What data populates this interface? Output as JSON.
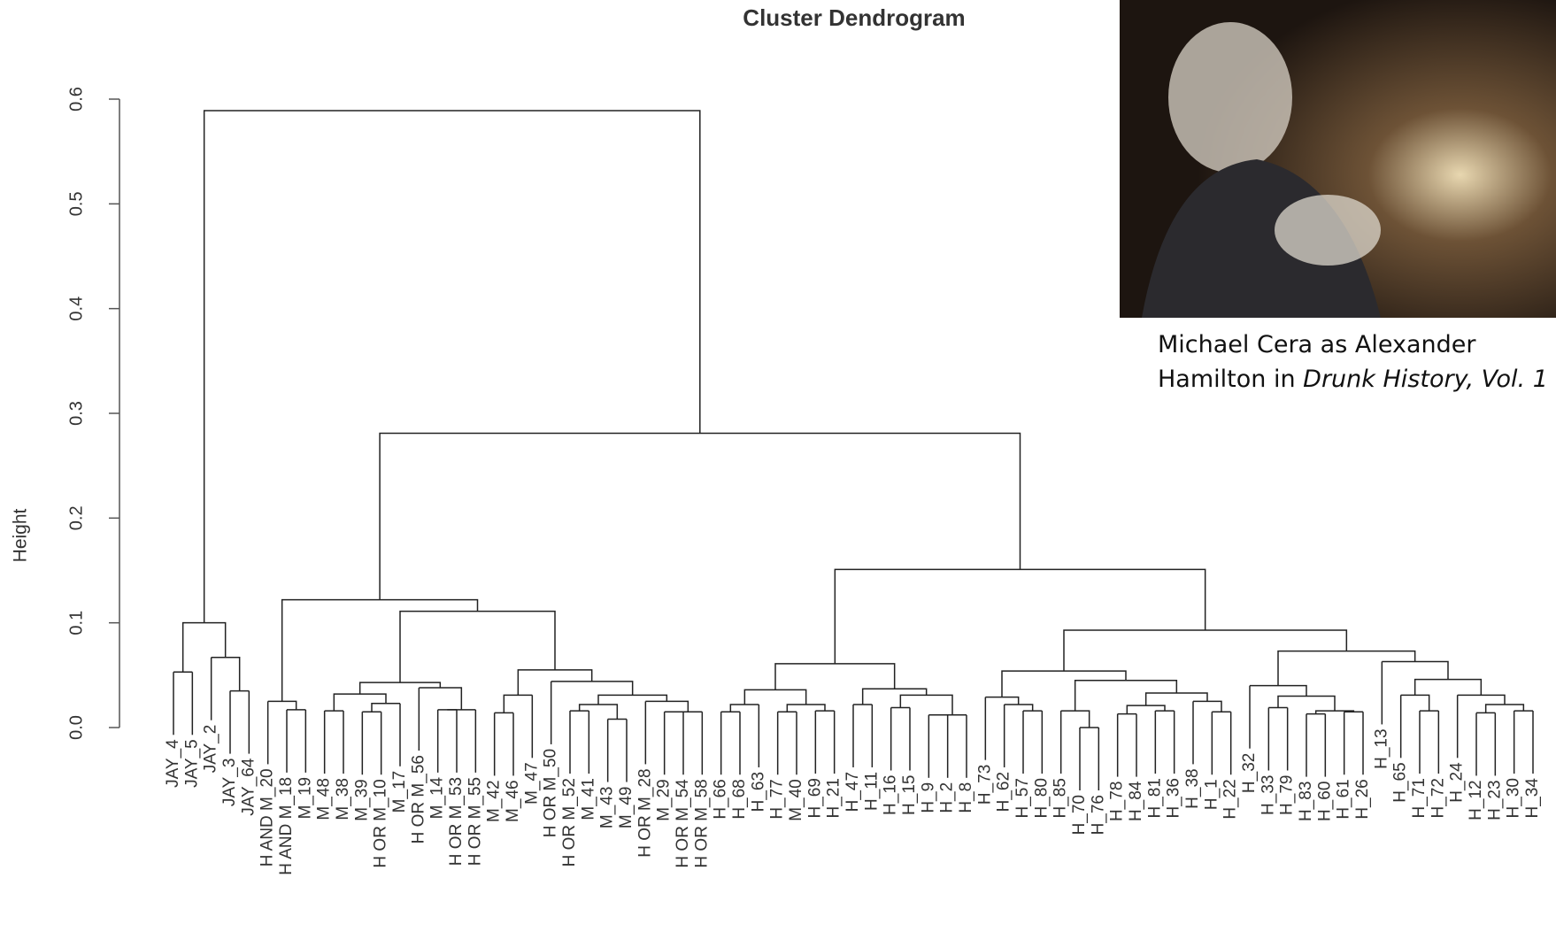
{
  "chart_data": {
    "type": "dendrogram",
    "title": "Cluster Dendrogram",
    "y_label": "Height",
    "ylim": [
      0,
      0.6
    ],
    "yticks": [
      {
        "value": 0,
        "label": "0.0"
      },
      0.1,
      0.2,
      0.3,
      0.4,
      0.5,
      0.6
    ],
    "color": "#222222",
    "tree": {
      "height": 0.589,
      "children": [
        {
          "height": 0.1,
          "children": [
            {
              "height": 0.053,
              "children": [
                "JAY_4",
                "JAY_5"
              ]
            },
            {
              "height": 0.067,
              "children": [
                "JAY_2",
                {
                  "height": 0.035,
                  "children": [
                    "JAY_3",
                    "JAY_64"
                  ]
                }
              ]
            }
          ]
        },
        {
          "height": 0.281,
          "children": [
            {
              "height": 0.122,
              "children": [
                {
                  "height": 0.025,
                  "children": [
                    "H AND M_20",
                    {
                      "height": 0.017,
                      "children": [
                        "H AND M_18",
                        "M_19"
                      ]
                    }
                  ]
                },
                {
                  "height": 0.111,
                  "children": [
                    {
                      "height": 0.043,
                      "children": [
                        {
                          "height": 0.032,
                          "children": [
                            {
                              "height": 0.016,
                              "children": [
                                "M_48",
                                "M_38"
                              ]
                            },
                            {
                              "height": 0.023,
                              "children": [
                                {
                                  "height": 0.015,
                                  "children": [
                                    "M_39",
                                    "H OR M_10"
                                  ]
                                },
                                "M_17"
                              ]
                            }
                          ]
                        },
                        {
                          "height": 0.038,
                          "children": [
                            "H OR M_56",
                            {
                              "height": 0.017,
                              "children": [
                                {
                                  "height": 0.017,
                                  "children": [
                                    "M_14",
                                    "H OR M_53"
                                  ]
                                },
                                "H OR M_55"
                              ]
                            }
                          ]
                        }
                      ]
                    },
                    {
                      "height": 0.055,
                      "children": [
                        {
                          "height": 0.031,
                          "children": [
                            {
                              "height": 0.014,
                              "children": [
                                "M_42",
                                "M_46"
                              ]
                            },
                            "M_47"
                          ]
                        },
                        {
                          "height": 0.044,
                          "children": [
                            "H OR M_50",
                            {
                              "height": 0.031,
                              "children": [
                                {
                                  "height": 0.022,
                                  "children": [
                                    {
                                      "height": 0.016,
                                      "children": [
                                        "H OR M_52",
                                        "M_41"
                                      ]
                                    },
                                    {
                                      "height": 0.008,
                                      "children": [
                                        "M_43",
                                        "M_49"
                                      ]
                                    }
                                  ]
                                },
                                {
                                  "height": 0.025,
                                  "children": [
                                    "H OR M_28",
                                    {
                                      "height": 0.015,
                                      "children": [
                                        {
                                          "height": 0.015,
                                          "children": [
                                            "M_29",
                                            "H OR M_54"
                                          ]
                                        },
                                        "H OR M_58"
                                      ]
                                    }
                                  ]
                                }
                              ]
                            }
                          ]
                        }
                      ]
                    }
                  ]
                }
              ]
            },
            {
              "height": 0.151,
              "children": [
                {
                  "height": 0.061,
                  "children": [
                    {
                      "height": 0.036,
                      "children": [
                        {
                          "height": 0.022,
                          "children": [
                            {
                              "height": 0.015,
                              "children": [
                                "H_66",
                                "H_68"
                              ]
                            },
                            "H_63"
                          ]
                        },
                        {
                          "height": 0.022,
                          "children": [
                            {
                              "height": 0.015,
                              "children": [
                                "H_77",
                                "M_40"
                              ]
                            },
                            {
                              "height": 0.016,
                              "children": [
                                "H_69",
                                "H_21"
                              ]
                            }
                          ]
                        }
                      ]
                    },
                    {
                      "height": 0.037,
                      "children": [
                        {
                          "height": 0.022,
                          "children": [
                            "H_47",
                            "H_11"
                          ]
                        },
                        {
                          "height": 0.031,
                          "children": [
                            {
                              "height": 0.019,
                              "children": [
                                "H_16",
                                "H_15"
                              ]
                            },
                            {
                              "height": 0.012,
                              "children": [
                                {
                                  "height": 0.012,
                                  "children": [
                                    "H_9",
                                    "H_2"
                                  ]
                                },
                                "H_8"
                              ]
                            }
                          ]
                        }
                      ]
                    }
                  ]
                },
                {
                  "height": 0.093,
                  "children": [
                    {
                      "height": 0.054,
                      "children": [
                        {
                          "height": 0.029,
                          "children": [
                            "H_73",
                            {
                              "height": 0.022,
                              "children": [
                                "H_62",
                                {
                                  "height": 0.016,
                                  "children": [
                                    "H_57",
                                    "H_80"
                                  ]
                                }
                              ]
                            }
                          ]
                        },
                        {
                          "height": 0.045,
                          "children": [
                            {
                              "height": 0.016,
                              "children": [
                                "H_85",
                                {
                                  "height": 0,
                                  "children": [
                                    "H_70",
                                    "H_76"
                                  ]
                                }
                              ]
                            },
                            {
                              "height": 0.033,
                              "children": [
                                {
                                  "height": 0.021,
                                  "children": [
                                    {
                                      "height": 0.013,
                                      "children": [
                                        "H_78",
                                        "H_84"
                                      ]
                                    },
                                    {
                                      "height": 0.016,
                                      "children": [
                                        "H_81",
                                        "H_36"
                                      ]
                                    }
                                  ]
                                },
                                {
                                  "height": 0.025,
                                  "children": [
                                    "H_38",
                                    {
                                      "height": 0.015,
                                      "children": [
                                        "H_1",
                                        "H_22"
                                      ]
                                    }
                                  ]
                                }
                              ]
                            }
                          ]
                        }
                      ]
                    },
                    {
                      "height": 0.073,
                      "children": [
                        {
                          "height": 0.04,
                          "children": [
                            "H_32",
                            {
                              "height": 0.03,
                              "children": [
                                {
                                  "height": 0.019,
                                  "children": [
                                    "H_33",
                                    "H_79"
                                  ]
                                },
                                {
                                  "height": 0.016,
                                  "children": [
                                    {
                                      "height": 0.013,
                                      "children": [
                                        "H_83",
                                        "H_60"
                                      ]
                                    },
                                    {
                                      "height": 0.015,
                                      "children": [
                                        "H_61",
                                        "H_26"
                                      ]
                                    }
                                  ]
                                }
                              ]
                            }
                          ]
                        },
                        {
                          "height": 0.063,
                          "children": [
                            "H_13",
                            {
                              "height": 0.046,
                              "children": [
                                {
                                  "height": 0.031,
                                  "children": [
                                    "H_65",
                                    {
                                      "height": 0.016,
                                      "children": [
                                        "H_71",
                                        "H_72"
                                      ]
                                    }
                                  ]
                                },
                                {
                                  "height": 0.031,
                                  "children": [
                                    "H_24",
                                    {
                                      "height": 0.022,
                                      "children": [
                                        {
                                          "height": 0.014,
                                          "children": [
                                            "H_12",
                                            "H_23"
                                          ]
                                        },
                                        {
                                          "height": 0.016,
                                          "children": [
                                            "H_30",
                                            "H_34"
                                          ]
                                        }
                                      ]
                                    }
                                  ]
                                }
                              ]
                            }
                          ]
                        }
                      ]
                    }
                  ]
                }
              ]
            }
          ]
        }
      ]
    }
  },
  "photo": {
    "caption_line1": "Michael Cera as Alexander",
    "caption_line2": "Hamilton in ",
    "caption_italic": "Drunk History, Vol. 1"
  }
}
